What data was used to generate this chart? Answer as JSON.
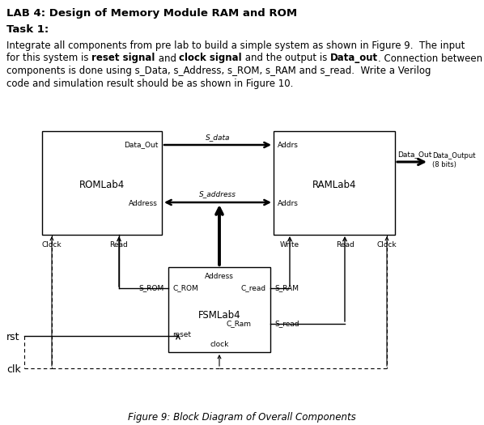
{
  "title": "LAB 4: Design of Memory Module RAM and ROM",
  "task": "Task 1:",
  "body_lines": [
    [
      [
        "Integrate all components from pre lab to build a simple system as shown in Figure 9.  The input",
        false
      ]
    ],
    [
      [
        "for this system is ",
        false
      ],
      [
        "reset signal",
        true
      ],
      [
        " and ",
        false
      ],
      [
        "clock signal",
        true
      ],
      [
        " and the output is ",
        false
      ],
      [
        "Data_out",
        true
      ],
      [
        ". Connection between",
        false
      ]
    ],
    [
      [
        "components is done using s_Data, s_Address, s_ROM, s_RAM and s_read.  Write a Verilog",
        false
      ]
    ],
    [
      [
        "code and simulation result should be as shown in Figure 10.",
        false
      ]
    ]
  ],
  "caption": "Figure 9: Block Diagram of Overall Components",
  "bg": "#ffffff"
}
